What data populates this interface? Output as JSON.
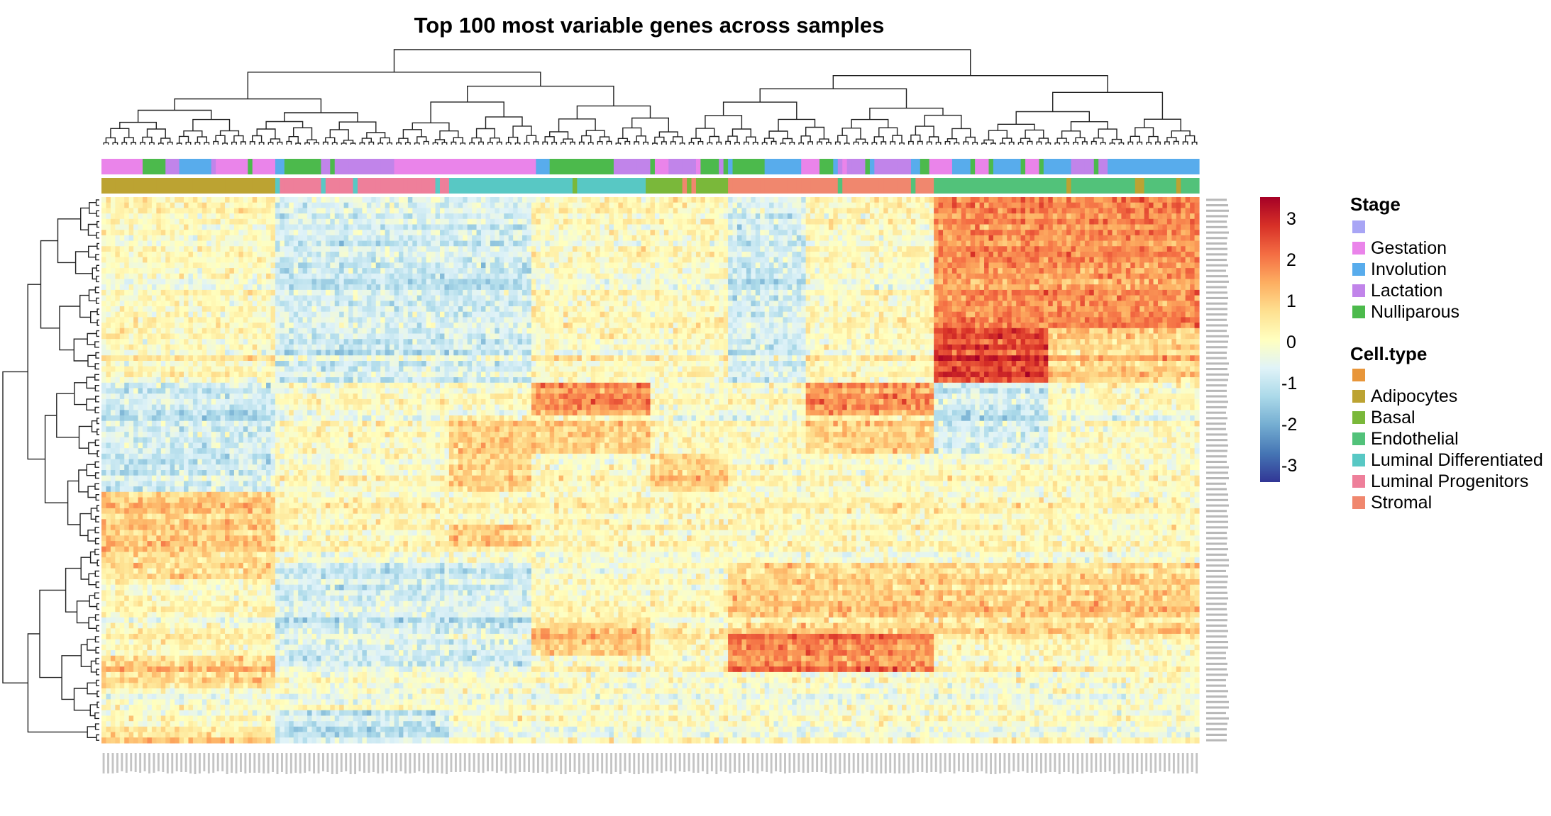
{
  "chart_data": {
    "type": "heatmap",
    "title": "Top 100 most variable genes across samples",
    "n_rows": 100,
    "n_cols": 240,
    "color_scale": {
      "colors": [
        "#313695",
        "#4575b4",
        "#74add1",
        "#abd9e9",
        "#e0f3f8",
        "#ffffbf",
        "#fee090",
        "#fdae61",
        "#f46d43",
        "#d73027",
        "#a50026"
      ],
      "range": [
        -3.5,
        3.5
      ],
      "ticks": [
        "3",
        "2",
        "1",
        "0",
        "-1",
        "-2",
        "-3"
      ]
    },
    "column_groups": [
      {
        "cell_type": "Adipocytes",
        "count": 38,
        "pattern": [
          0,
          0,
          0,
          0,
          0,
          0,
          0,
          0,
          0,
          0,
          -1,
          -1,
          -1,
          -1,
          -1,
          -1,
          1,
          1,
          1,
          1,
          1,
          0,
          0,
          0,
          0,
          1,
          1,
          0,
          0,
          1
        ]
      },
      {
        "cell_type": "Luminal Progenitors",
        "count": 38,
        "pattern": [
          -1,
          -1,
          -1,
          -1,
          -1,
          -1,
          -1,
          -1,
          -1,
          -1,
          0,
          0,
          0,
          0,
          0,
          0,
          0,
          0,
          0,
          0,
          -1,
          -1,
          -1,
          -1,
          -1,
          -1,
          0,
          0,
          -1,
          -1
        ]
      },
      {
        "cell_type": "Luminal Differentiated",
        "count": 18,
        "pattern": [
          -1,
          -1,
          -1,
          -1,
          -1,
          -1,
          -1,
          -1,
          -1,
          -1,
          0,
          0,
          1,
          1,
          1,
          1,
          0,
          0,
          1,
          0,
          -1,
          -1,
          -1,
          -1,
          -1,
          -1,
          0,
          0,
          0,
          0
        ]
      },
      {
        "cell_type": "Luminal Differentiated",
        "count": 26,
        "pattern": [
          0,
          0,
          0,
          0,
          0,
          0,
          0,
          0,
          0,
          0,
          2,
          2,
          1,
          1,
          0,
          0,
          0,
          0,
          0,
          0,
          0,
          0,
          0,
          1,
          1,
          0,
          0,
          0,
          0,
          0
        ]
      },
      {
        "cell_type": "Basal",
        "count": 17,
        "pattern": [
          0,
          0,
          0,
          0,
          0,
          0,
          0,
          0,
          0,
          0,
          0,
          0,
          0,
          0,
          1,
          1,
          0,
          0,
          0,
          0,
          0,
          0,
          0,
          0,
          0,
          0,
          0,
          0,
          0,
          0
        ]
      },
      {
        "cell_type": "Stromal",
        "count": 17,
        "pattern": [
          -1,
          -1,
          -1,
          -1,
          -1,
          -1,
          -1,
          -1,
          -1,
          -1,
          0,
          0,
          0,
          0,
          0,
          0,
          0,
          0,
          0,
          0,
          1,
          1,
          1,
          1,
          2,
          2,
          0,
          0,
          0,
          0
        ]
      },
      {
        "cell_type": "Stromal",
        "count": 28,
        "pattern": [
          0,
          0,
          0,
          0,
          0,
          0,
          0,
          0,
          0,
          0,
          2,
          2,
          1,
          1,
          0,
          0,
          0,
          0,
          0,
          0,
          1,
          1,
          1,
          1,
          2,
          2,
          0,
          0,
          0,
          0
        ]
      },
      {
        "cell_type": "Endothelial",
        "count": 25,
        "pattern": [
          2,
          2,
          2,
          2,
          2,
          2,
          2,
          3,
          3,
          3,
          -1,
          -1,
          -1,
          -1,
          0,
          0,
          0,
          0,
          0,
          0,
          1,
          1,
          1,
          1,
          0,
          0,
          0,
          0,
          0,
          0
        ]
      },
      {
        "cell_type": "Endothelial",
        "count": 33,
        "pattern": [
          2,
          2,
          2,
          2,
          2,
          2,
          2,
          1,
          1,
          1,
          0,
          0,
          0,
          0,
          0,
          0,
          0,
          0,
          0,
          0,
          1,
          1,
          1,
          1,
          0,
          0,
          0,
          0,
          0,
          0
        ]
      }
    ],
    "annotation_tracks": [
      "Stage",
      "Cell.type"
    ],
    "legend": {
      "placement": "right",
      "stage": {
        "title": "Stage",
        "entries": [
          {
            "label": "",
            "color": "#a8a5f5"
          },
          {
            "label": "Gestation",
            "color": "#ea84ea"
          },
          {
            "label": "Involution",
            "color": "#58acec"
          },
          {
            "label": "Lactation",
            "color": "#c184ea"
          },
          {
            "label": "Nulliparous",
            "color": "#4cba4c"
          }
        ]
      },
      "cell_type": {
        "title": "Cell.type",
        "entries": [
          {
            "label": "",
            "color": "#e8963a"
          },
          {
            "label": "Adipocytes",
            "color": "#bca332"
          },
          {
            "label": "Basal",
            "color": "#7ab83a"
          },
          {
            "label": "Endothelial",
            "color": "#52c27a"
          },
          {
            "label": "Luminal Differentiated",
            "color": "#58c8c4"
          },
          {
            "label": "Luminal Progenitors",
            "color": "#ee7f9a"
          },
          {
            "label": "Stromal",
            "color": "#f0876e"
          }
        ]
      }
    }
  }
}
